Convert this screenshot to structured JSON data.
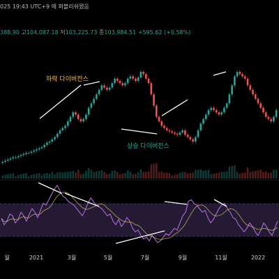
{
  "header": {
    "datetime": "025 19:43 UTC+9",
    "status": "에 퍼블리쉬됐음"
  },
  "ohlc": {
    "open_value": "388.90",
    "high_label": "고",
    "high_value": "104,087.18",
    "low_label": "저",
    "low_value": "103,225.73",
    "close_label": "종",
    "close_value": "103,984.51",
    "change": "+595.62 (+0.58%)"
  },
  "colors": {
    "up": "#26a69a",
    "down": "#ef5350",
    "rsi_line": "#b06ad6",
    "rsi_ma": "#d8d060",
    "annotation_bear": "#f0c040",
    "annotation_bull": "#26a69a",
    "trendline": "#ffffff"
  },
  "chart_data": [
    {
      "type": "candlestick",
      "x_ticks": [
        "월",
        "2021",
        "3월",
        "5월",
        "7월",
        "9월",
        "11월",
        "2022"
      ],
      "close": [
        20,
        21,
        22,
        23,
        24,
        24,
        25,
        26,
        27,
        28,
        28,
        29,
        30,
        31,
        32,
        33,
        35,
        37,
        38,
        40,
        42,
        45,
        48,
        50,
        52,
        56,
        60,
        64,
        62,
        58,
        56,
        58,
        62,
        68,
        72,
        76,
        80,
        84,
        88,
        86,
        84,
        86,
        90,
        94,
        92,
        90,
        88,
        90,
        94,
        96,
        94,
        92,
        95,
        100,
        98,
        94,
        90,
        80,
        70,
        60,
        56,
        52,
        50,
        48,
        47,
        46,
        45,
        44,
        46,
        48,
        44,
        42,
        40,
        38,
        42,
        48,
        54,
        58,
        62,
        66,
        68,
        66,
        64,
        62,
        64,
        68,
        72,
        80,
        88,
        96,
        100,
        98,
        96,
        94,
        88,
        84,
        80,
        76,
        72,
        68,
        64,
        60,
        58,
        56,
        60,
        66
      ],
      "annotations": [
        {
          "text": "하락 다이버전스",
          "kind": "bearish"
        },
        {
          "text": "상승 다이버전스",
          "kind": "bullish"
        }
      ]
    },
    {
      "type": "line",
      "series": [
        {
          "values": [
            55,
            48,
            52,
            60,
            58,
            50,
            54,
            62,
            58,
            52,
            60,
            66,
            62,
            56,
            64,
            72,
            70,
            76,
            82,
            88,
            92,
            86,
            80,
            78,
            74,
            72,
            70,
            66,
            62,
            58,
            64,
            72,
            78,
            74,
            70,
            68,
            66,
            62,
            58,
            60,
            52,
            48,
            54,
            46,
            50,
            56,
            52,
            44,
            40,
            42,
            36,
            32,
            34,
            30,
            36,
            32,
            28,
            30,
            34,
            38,
            36,
            40,
            44,
            42,
            50,
            58,
            62,
            74,
            76,
            72,
            70,
            66,
            62,
            64,
            56,
            50,
            54,
            60,
            66,
            70,
            72,
            66,
            62,
            56,
            54,
            48,
            44,
            40,
            44,
            50,
            46,
            40,
            36,
            42,
            50,
            46,
            40,
            36,
            44,
            52
          ]
        }
      ]
    }
  ]
}
